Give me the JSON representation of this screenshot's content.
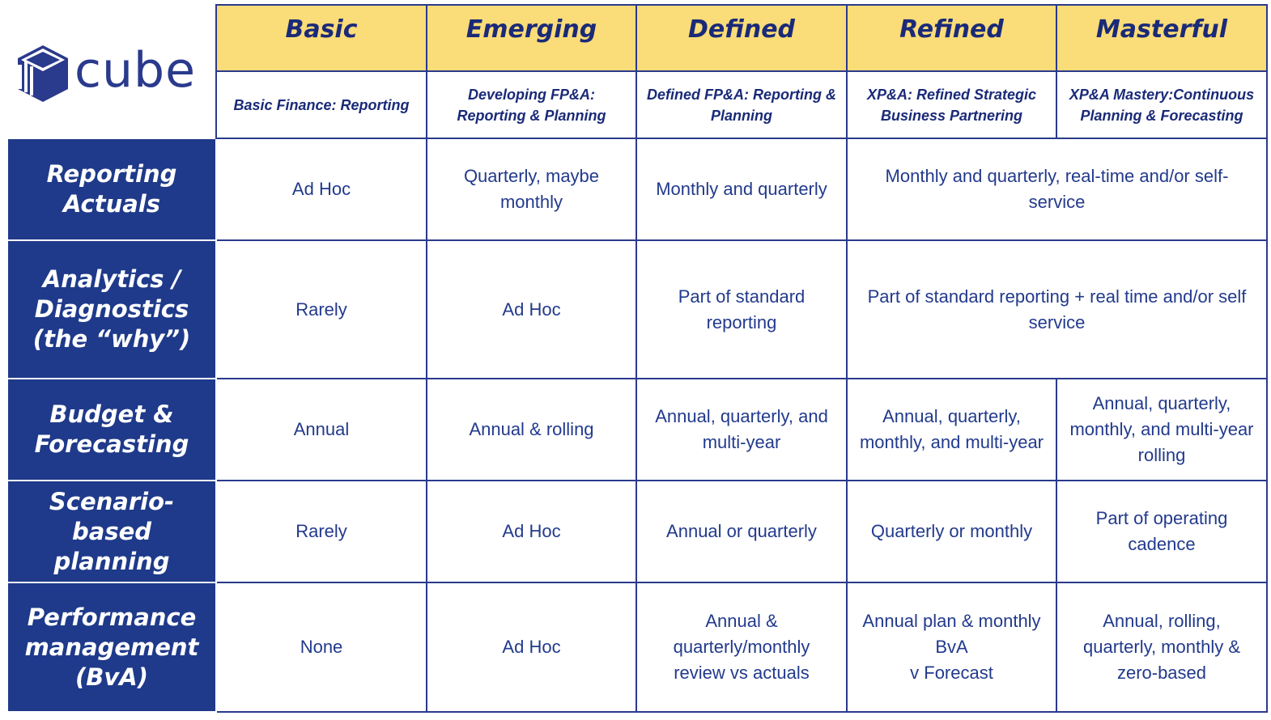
{
  "brand": {
    "name": "cube",
    "color": "#2a3a8c"
  },
  "colors": {
    "header_bg": "#fadc78",
    "rowhead_bg": "#1f3a8a",
    "text": "#223a8c"
  },
  "levels": [
    {
      "name": "Basic",
      "subtitle": "Basic Finance: Reporting"
    },
    {
      "name": "Emerging",
      "subtitle": "Developing FP&A: Reporting & Planning"
    },
    {
      "name": "Defined",
      "subtitle": "Defined FP&A: Reporting & Planning"
    },
    {
      "name": "Refined",
      "subtitle": "XP&A: Refined Strategic Business Partnering"
    },
    {
      "name": "Masterful",
      "subtitle": "XP&A Mastery:Continuous Planning & Forecasting"
    }
  ],
  "rows": [
    {
      "label": "Reporting\nActuals",
      "basic": "Ad Hoc",
      "emerging": "Quarterly, maybe monthly",
      "defined": "Monthly and quarterly",
      "refined_masterful": "Monthly and quarterly, real-time and/or self-service"
    },
    {
      "label": "Analytics /\nDiagnostics\n(the “why”)",
      "basic": "Rarely",
      "emerging": "Ad Hoc",
      "defined": "Part of standard reporting",
      "refined_masterful": "Part of standard reporting + real time and/or self service"
    },
    {
      "label": "Budget &\nForecasting",
      "basic": "Annual",
      "emerging": "Annual & rolling",
      "defined": "Annual, quarterly, and multi-year",
      "refined": "Annual, quarterly, monthly, and multi-year",
      "masterful": "Annual, quarterly, monthly, and multi-year rolling"
    },
    {
      "label": "Scenario-based\nplanning",
      "basic": "Rarely",
      "emerging": "Ad Hoc",
      "defined": "Annual or quarterly",
      "refined": "Quarterly or monthly",
      "masterful": "Part of operating cadence"
    },
    {
      "label": "Performance\nmanagement\n(BvA)",
      "basic": "None",
      "emerging": "Ad Hoc",
      "defined": "Annual &\nquarterly/monthly\nreview vs actuals",
      "refined": "Annual plan & monthly\nBvA\nv Forecast",
      "masterful": "Annual, rolling,\nquarterly, monthly &\nzero-based"
    }
  ]
}
